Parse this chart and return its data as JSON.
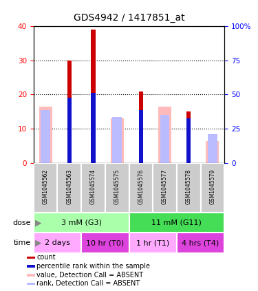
{
  "title": "GDS4942 / 1417851_at",
  "samples": [
    "GSM1045562",
    "GSM1045563",
    "GSM1045574",
    "GSM1045575",
    "GSM1045576",
    "GSM1045577",
    "GSM1045578",
    "GSM1045579"
  ],
  "count_values": [
    0,
    30,
    39,
    0,
    21,
    0,
    15,
    0
  ],
  "rank_values": [
    0,
    19,
    20.5,
    0,
    15.5,
    0,
    13,
    0
  ],
  "absent_value_values": [
    16.5,
    0,
    0,
    13,
    0,
    16.5,
    0,
    6.5
  ],
  "absent_rank_values": [
    15.5,
    0,
    0,
    13.5,
    0,
    14,
    0,
    8.5
  ],
  "count_color": "#cc0000",
  "rank_color": "#1111cc",
  "absent_value_color": "#ffbbbb",
  "absent_rank_color": "#bbbbff",
  "ylim_left": [
    0,
    40
  ],
  "ylim_right": [
    0,
    100
  ],
  "yticks_left": [
    0,
    10,
    20,
    30,
    40
  ],
  "yticks_right": [
    0,
    25,
    50,
    75,
    100
  ],
  "ytick_labels_right": [
    "0",
    "25",
    "50",
    "75",
    "100%"
  ],
  "dose_labels": [
    {
      "text": "3 mM (G3)",
      "start": 0,
      "end": 4,
      "color": "#aaffaa"
    },
    {
      "text": "11 mM (G11)",
      "start": 4,
      "end": 8,
      "color": "#44dd55"
    }
  ],
  "time_labels": [
    {
      "text": "2 days",
      "start": 0,
      "end": 2,
      "color": "#ffaaff"
    },
    {
      "text": "10 hr (T0)",
      "start": 2,
      "end": 4,
      "color": "#dd44dd"
    },
    {
      "text": "1 hr (T1)",
      "start": 4,
      "end": 6,
      "color": "#ffaaff"
    },
    {
      "text": "4 hrs (T4)",
      "start": 6,
      "end": 8,
      "color": "#dd44dd"
    }
  ],
  "legend_labels": [
    "count",
    "percentile rank within the sample",
    "value, Detection Call = ABSENT",
    "rank, Detection Call = ABSENT"
  ],
  "legend_colors": [
    "#cc0000",
    "#1111cc",
    "#ffbbbb",
    "#bbbbff"
  ],
  "sample_bg_color": "#cccccc",
  "sample_border_color": "#ffffff",
  "plot_border_color": "#888888"
}
